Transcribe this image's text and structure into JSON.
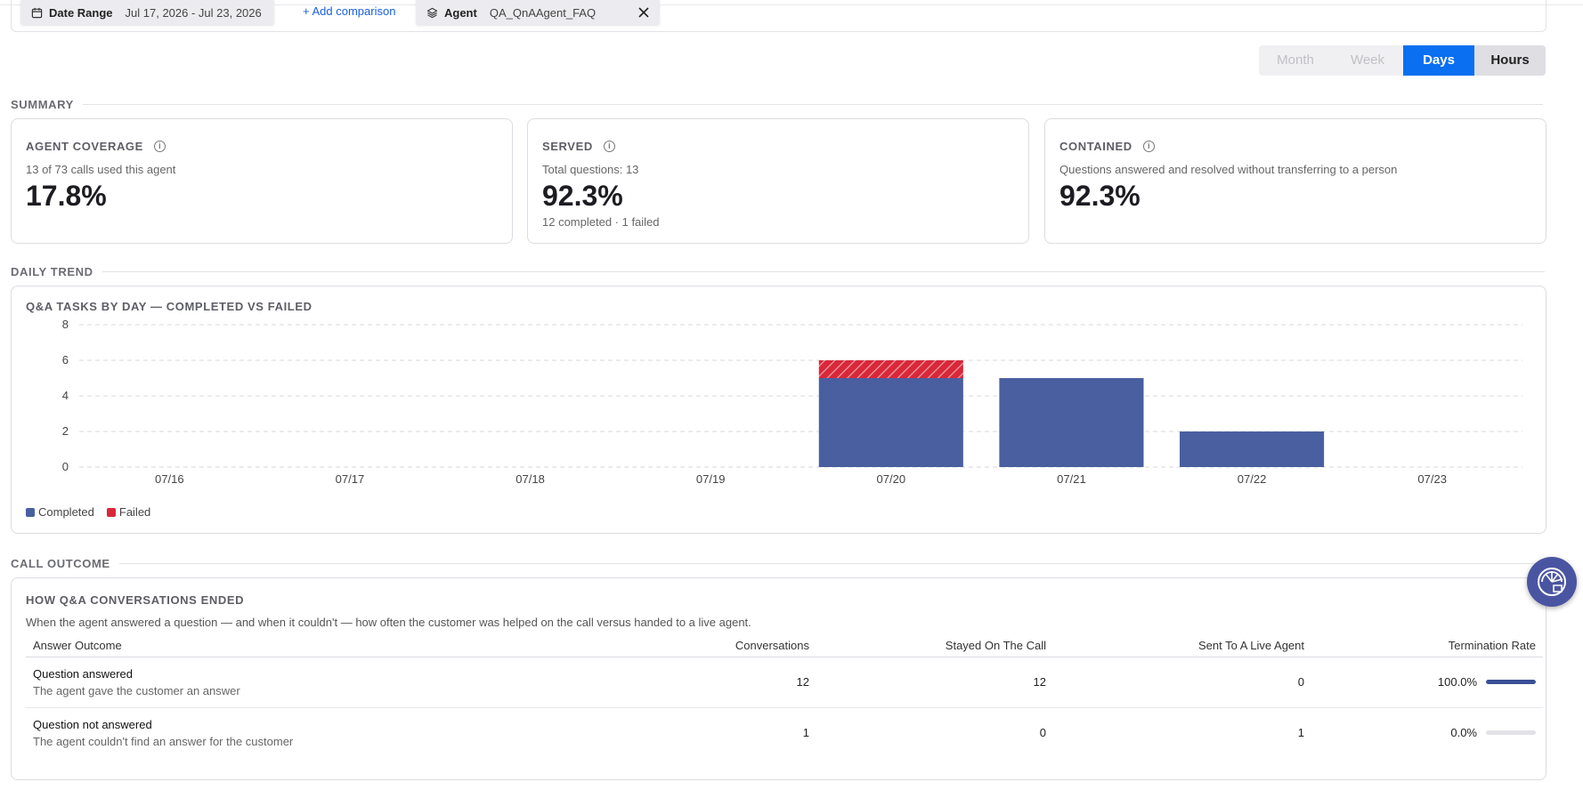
{
  "filters": {
    "date_range": {
      "label": "Date Range",
      "value": "Jul 17, 2026 - Jul 23, 2026"
    },
    "add_comparison": "+ Add comparison",
    "agent": {
      "label": "Agent",
      "value": "QA_QnAAgent_FAQ"
    }
  },
  "granularity": {
    "options": [
      "Month",
      "Week",
      "Days",
      "Hours"
    ],
    "selected": "Days"
  },
  "summary": {
    "section_title": "SUMMARY",
    "cards": [
      {
        "label": "AGENT COVERAGE",
        "subtitle": "13 of 73 calls used this agent",
        "value": "17.8%",
        "footer": ""
      },
      {
        "label": "SERVED",
        "subtitle": "Total questions: 13",
        "value": "92.3%",
        "footer": "12 completed · 1 failed"
      },
      {
        "label": "CONTAINED",
        "subtitle": "Questions answered and resolved without transferring to a person",
        "value": "92.3%",
        "footer": ""
      }
    ]
  },
  "daily_trend": {
    "section_title": "DAILY TREND",
    "chart_title": "Q&A TASKS BY DAY — COMPLETED VS FAILED"
  },
  "chart_data": {
    "type": "bar",
    "stacked": true,
    "title": "Q&A TASKS BY DAY — COMPLETED VS FAILED",
    "categories": [
      "07/16",
      "07/17",
      "07/18",
      "07/19",
      "07/20",
      "07/21",
      "07/22",
      "07/23"
    ],
    "series": [
      {
        "name": "Completed",
        "values": [
          0,
          0,
          0,
          0,
          5,
          5,
          2,
          0
        ],
        "color": "#4a5fa0"
      },
      {
        "name": "Failed",
        "values": [
          0,
          0,
          0,
          0,
          1,
          0,
          0,
          0
        ],
        "color": "#d8283a"
      }
    ],
    "ylim": [
      0,
      8
    ],
    "yticks": [
      0,
      2,
      4,
      6,
      8
    ],
    "grid": true,
    "legend": "bottom-left"
  },
  "call_outcome": {
    "section_title": "CALL OUTCOME",
    "title": "HOW Q&A CONVERSATIONS ENDED",
    "description": "When the agent answered a question — and when it couldn't — how often the customer was helped on the call versus handed to a live agent.",
    "columns": [
      "Answer Outcome",
      "Conversations",
      "Stayed On The Call",
      "Sent To A Live Agent",
      "Termination Rate"
    ],
    "rows": [
      {
        "title": "Question answered",
        "subtitle": "The agent gave the customer an answer",
        "conversations": "12",
        "stayed": "12",
        "sent": "0",
        "rate": "100.0%",
        "rate_fraction": 1.0
      },
      {
        "title": "Question not answered",
        "subtitle": "The agent couldn't find an answer for the customer",
        "conversations": "1",
        "stayed": "0",
        "sent": "1",
        "rate": "0.0%",
        "rate_fraction": 0.0
      }
    ]
  },
  "colors": {
    "accent": "#0a6ff0",
    "completed": "#4a5fa0",
    "failed": "#d8283a"
  },
  "icons": {
    "date": "calendar-icon",
    "agent": "layers-icon",
    "remove": "close-icon",
    "info": "info-icon",
    "assistant": "assistant-icon"
  }
}
